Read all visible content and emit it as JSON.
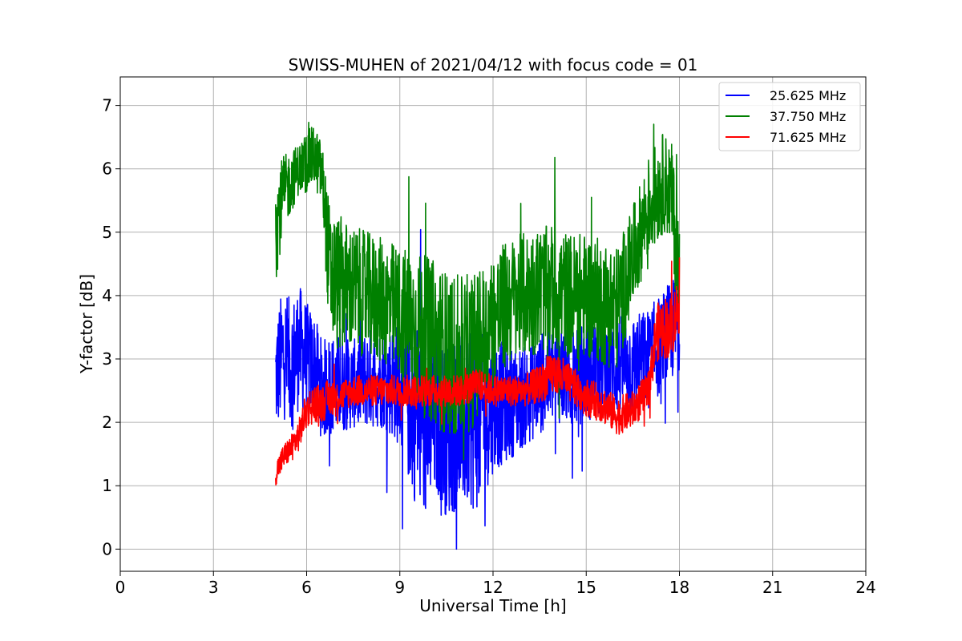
{
  "chart_data": {
    "type": "line",
    "title": "SWISS-MUHEN of 2021/04/12 with focus code = 01",
    "xlabel": "Universal Time [h]",
    "ylabel": "Y-factor [dB]",
    "xlim": [
      0,
      24
    ],
    "ylim": [
      -0.35,
      7.45
    ],
    "xticks": [
      0,
      3,
      6,
      9,
      12,
      15,
      18,
      21,
      24
    ],
    "yticks": [
      0,
      1,
      2,
      3,
      4,
      5,
      6,
      7
    ],
    "grid": true,
    "legend_position": "top-right",
    "series": [
      {
        "name": "25.625 MHz",
        "color": "#0000ff",
        "x": [
          5.0,
          5.25,
          5.5,
          5.75,
          6.0,
          6.25,
          6.5,
          6.75,
          7.0,
          7.5,
          8.0,
          8.5,
          9.0,
          9.25,
          9.5,
          9.75,
          10.0,
          10.25,
          10.5,
          11.0,
          11.5,
          12.0,
          12.5,
          13.0,
          13.5,
          14.0,
          14.5,
          15.0,
          15.5,
          16.0,
          16.5,
          17.0,
          17.5,
          18.0
        ],
        "y": [
          2.7,
          3.1,
          2.9,
          3.2,
          3.0,
          2.9,
          2.5,
          2.6,
          2.6,
          2.6,
          2.7,
          2.7,
          2.6,
          2.4,
          2.2,
          2.0,
          2.0,
          2.1,
          1.9,
          2.0,
          2.0,
          2.3,
          2.3,
          2.4,
          2.6,
          2.8,
          2.7,
          2.8,
          2.9,
          2.9,
          2.9,
          3.0,
          3.3,
          3.6
        ],
        "spread": [
          0.9,
          1.1,
          1.0,
          1.0,
          0.9,
          0.8,
          0.8,
          0.8,
          0.8,
          0.7,
          0.8,
          0.8,
          1.0,
          1.3,
          1.5,
          1.6,
          1.5,
          1.3,
          1.4,
          1.4,
          1.4,
          1.1,
          0.9,
          0.8,
          0.8,
          0.8,
          0.8,
          0.8,
          0.8,
          0.8,
          0.8,
          0.8,
          0.8,
          0.8
        ]
      },
      {
        "name": "37.750 MHz",
        "color": "#008000",
        "x": [
          5.0,
          5.25,
          5.5,
          5.75,
          6.0,
          6.25,
          6.5,
          6.75,
          7.0,
          7.5,
          8.0,
          8.5,
          9.0,
          9.5,
          10.0,
          10.5,
          11.0,
          11.5,
          12.0,
          12.5,
          13.0,
          13.5,
          14.0,
          14.5,
          15.0,
          15.5,
          16.0,
          16.5,
          17.0,
          17.25,
          17.5,
          17.75,
          18.0
        ],
        "y": [
          5.1,
          5.6,
          5.8,
          6.0,
          6.1,
          6.2,
          5.9,
          4.3,
          4.2,
          4.1,
          4.0,
          3.9,
          3.7,
          3.5,
          3.3,
          3.1,
          3.0,
          3.2,
          3.6,
          3.9,
          4.0,
          4.1,
          4.1,
          4.0,
          4.0,
          3.9,
          3.8,
          4.6,
          5.4,
          5.6,
          5.8,
          5.6,
          4.2
        ],
        "spread": [
          0.9,
          0.6,
          0.5,
          0.4,
          0.5,
          0.5,
          0.5,
          1.1,
          1.1,
          1.0,
          1.0,
          1.0,
          1.1,
          1.2,
          1.3,
          1.3,
          1.3,
          1.2,
          1.1,
          1.0,
          1.0,
          1.0,
          1.0,
          1.0,
          1.0,
          1.0,
          1.0,
          0.8,
          0.8,
          0.8,
          0.8,
          0.8,
          1.0
        ]
      },
      {
        "name": "71.625 MHz",
        "color": "#ff0000",
        "x": [
          5.0,
          5.25,
          5.5,
          5.75,
          6.0,
          6.25,
          6.5,
          6.75,
          7.0,
          7.5,
          8.0,
          8.5,
          9.0,
          9.5,
          10.0,
          10.5,
          11.0,
          11.5,
          12.0,
          12.5,
          13.0,
          13.5,
          14.0,
          14.5,
          15.0,
          15.5,
          16.0,
          16.5,
          17.0,
          17.25,
          17.5,
          17.75,
          18.0
        ],
        "y": [
          1.2,
          1.45,
          1.6,
          1.8,
          2.2,
          2.3,
          2.3,
          2.4,
          2.4,
          2.5,
          2.5,
          2.5,
          2.5,
          2.5,
          2.5,
          2.5,
          2.5,
          2.6,
          2.5,
          2.5,
          2.5,
          2.6,
          2.8,
          2.6,
          2.4,
          2.3,
          2.1,
          2.2,
          2.5,
          3.4,
          3.5,
          3.5,
          3.9
        ],
        "spread": [
          0.2,
          0.2,
          0.2,
          0.25,
          0.3,
          0.3,
          0.3,
          0.3,
          0.25,
          0.25,
          0.25,
          0.25,
          0.25,
          0.25,
          0.25,
          0.25,
          0.25,
          0.25,
          0.25,
          0.25,
          0.25,
          0.3,
          0.35,
          0.3,
          0.3,
          0.3,
          0.3,
          0.3,
          0.3,
          0.45,
          0.5,
          0.5,
          0.5
        ]
      }
    ]
  }
}
